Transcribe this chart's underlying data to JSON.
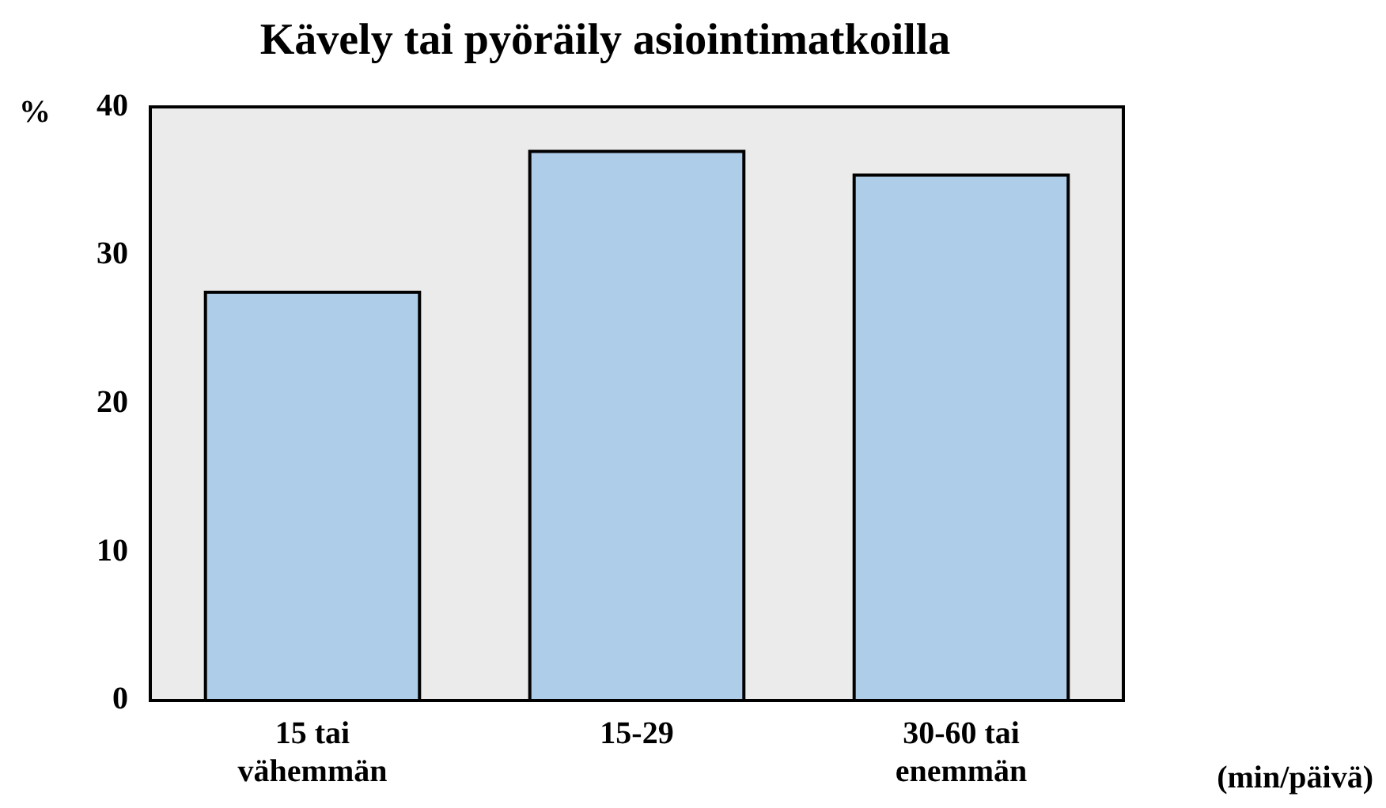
{
  "chart_data": {
    "type": "bar",
    "title": "Kävely tai pyöräily asiointimatkoilla",
    "ylabel": "%",
    "xlabel": "(min/päivä)",
    "categories": [
      "15 tai vähemmän",
      "15-29",
      "30-60 tai enemmän"
    ],
    "values": [
      27.5,
      37,
      35.4
    ],
    "color": "#aecde9",
    "ylim": [
      0,
      40
    ],
    "yticks": [
      0,
      10,
      20,
      30,
      40
    ],
    "grid": false,
    "legend": false
  }
}
